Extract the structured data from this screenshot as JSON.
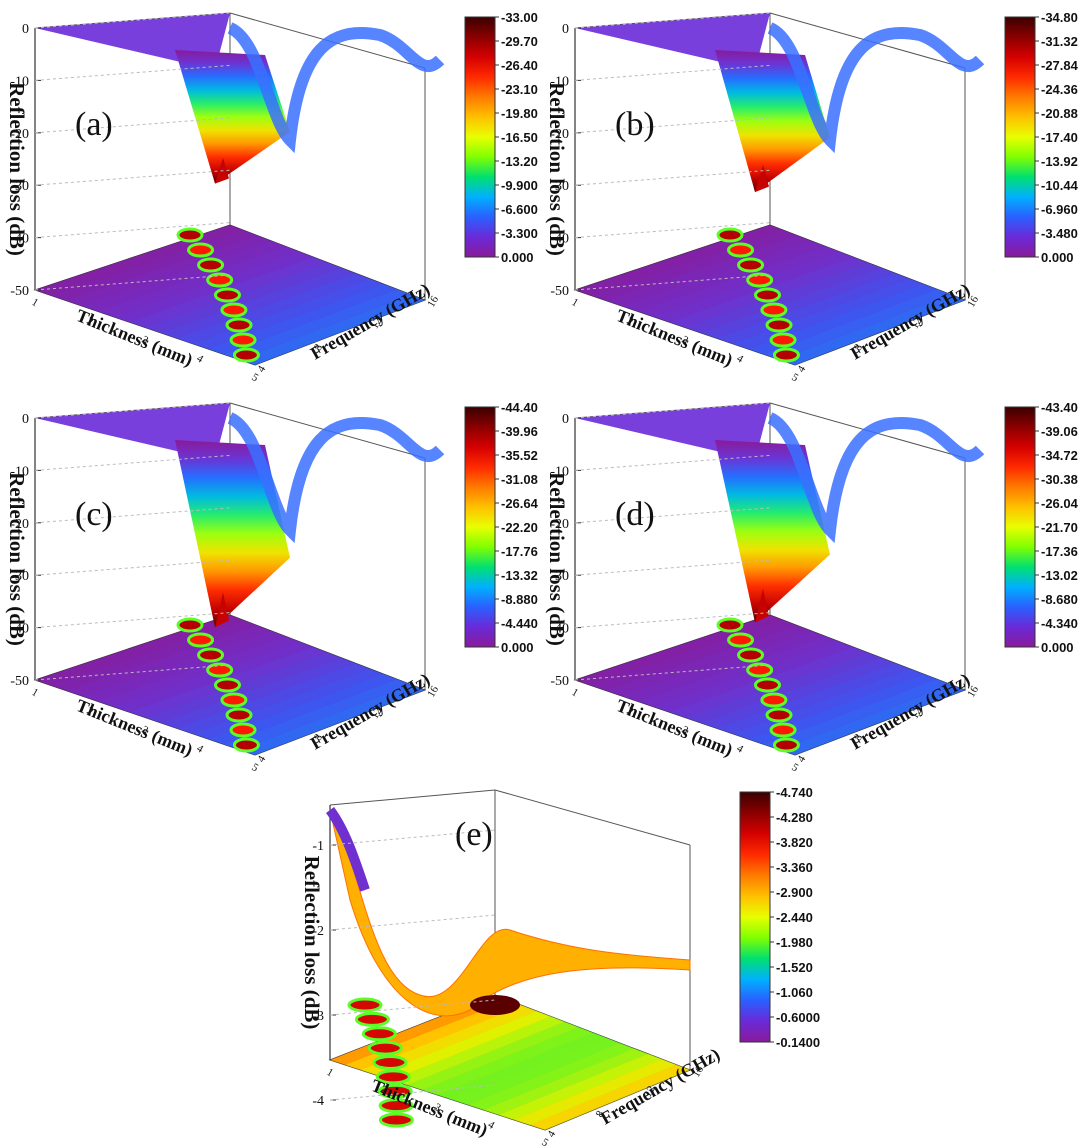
{
  "chart_data": [
    {
      "type": "surface",
      "panel_label": "(a)",
      "zlabel": "Reflection loss (dB)",
      "xlabel": "Thickness (mm)",
      "ylabel": "Frequency (GHz)",
      "z_ticks": [
        "0",
        "-10",
        "-20",
        "-30",
        "-40",
        "-50"
      ],
      "x_ticks": [
        "1",
        "2",
        "3",
        "4",
        "5"
      ],
      "y_ticks": [
        "4",
        "8",
        "12",
        "16"
      ],
      "colorbar_ticks": [
        "-33.00",
        "-29.70",
        "-26.40",
        "-23.10",
        "-19.80",
        "-16.50",
        "-13.20",
        "-9.900",
        "-6.600",
        "-3.300",
        "0.000"
      ],
      "min_rl": -33.0
    },
    {
      "type": "surface",
      "panel_label": "(b)",
      "zlabel": "Reflection loss (dB)",
      "xlabel": "Thickness (mm)",
      "ylabel": "Frequency (GHz)",
      "z_ticks": [
        "0",
        "-10",
        "-20",
        "-30",
        "-40",
        "-50"
      ],
      "x_ticks": [
        "1",
        "2",
        "3",
        "4",
        "5"
      ],
      "y_ticks": [
        "4",
        "8",
        "12",
        "16"
      ],
      "colorbar_ticks": [
        "-34.80",
        "-31.32",
        "-27.84",
        "-24.36",
        "-20.88",
        "-17.40",
        "-13.92",
        "-10.44",
        "-6.960",
        "-3.480",
        "0.000"
      ],
      "min_rl": -34.8
    },
    {
      "type": "surface",
      "panel_label": "(c)",
      "zlabel": "Reflection loss (dB)",
      "xlabel": "Thickness (mm)",
      "ylabel": "Frequency (GHz)",
      "z_ticks": [
        "0",
        "-10",
        "-20",
        "-30",
        "-40",
        "-50"
      ],
      "x_ticks": [
        "1",
        "2",
        "3",
        "4",
        "5"
      ],
      "y_ticks": [
        "4",
        "8",
        "12",
        "16"
      ],
      "colorbar_ticks": [
        "-44.40",
        "-39.96",
        "-35.52",
        "-31.08",
        "-26.64",
        "-22.20",
        "-17.76",
        "-13.32",
        "-8.880",
        "-4.440",
        "0.000"
      ],
      "min_rl": -44.4
    },
    {
      "type": "surface",
      "panel_label": "(d)",
      "zlabel": "Reflection loss (dB)",
      "xlabel": "Thickness (mm)",
      "ylabel": "Frequency (GHz)",
      "z_ticks": [
        "0",
        "-10",
        "-20",
        "-30",
        "-40",
        "-50"
      ],
      "x_ticks": [
        "1",
        "2",
        "3",
        "4",
        "5"
      ],
      "y_ticks": [
        "4",
        "8",
        "12",
        "16"
      ],
      "colorbar_ticks": [
        "-43.40",
        "-39.06",
        "-34.72",
        "-30.38",
        "-26.04",
        "-21.70",
        "-17.36",
        "-13.02",
        "-8.680",
        "-4.340",
        "0.000"
      ],
      "min_rl": -43.4
    },
    {
      "type": "surface",
      "panel_label": "(e)",
      "zlabel": "Reflection loss (dB)",
      "xlabel": "Thickness (mm)",
      "ylabel": "Frequency (GHz)",
      "z_ticks": [
        "-1",
        "-2",
        "-3",
        "-4"
      ],
      "x_ticks": [
        "1",
        "2",
        "3",
        "4",
        "5"
      ],
      "y_ticks": [
        "4",
        "8",
        "12",
        "16"
      ],
      "colorbar_ticks": [
        "-4.740",
        "-4.280",
        "-3.820",
        "-3.360",
        "-2.900",
        "-2.440",
        "-1.980",
        "-1.520",
        "-1.060",
        "-0.6000",
        "-0.1400"
      ],
      "min_rl": -4.74
    }
  ]
}
